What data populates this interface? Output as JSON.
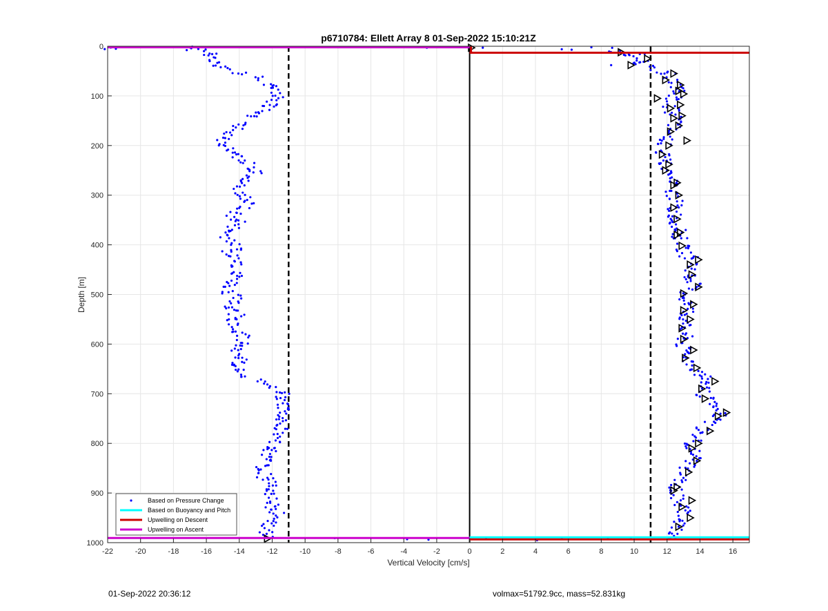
{
  "chart_data": {
    "type": "scatter",
    "title": "p6710784: Ellett Array 8 01-Sep-2022 15:10:21Z",
    "xlabel": "Vertical Velocity [cm/s]",
    "ylabel": "Depth [m]",
    "xlim": [
      -22,
      17
    ],
    "ylim": [
      0,
      1000
    ],
    "y_reversed": true,
    "grid": true,
    "x_ticks": [
      -22,
      -20,
      -18,
      -16,
      -14,
      -12,
      -10,
      -8,
      -6,
      -4,
      -2,
      0,
      2,
      4,
      6,
      8,
      10,
      12,
      14,
      16
    ],
    "y_ticks": [
      0,
      100,
      200,
      300,
      400,
      500,
      600,
      700,
      800,
      900,
      1000
    ],
    "legend_position": "bottom-left",
    "legend": [
      {
        "name": "Based on Pressure Change",
        "color": "#0000ff",
        "style": "dot"
      },
      {
        "name": "Based on Buoyancy and Pitch",
        "color": "#00ffff",
        "style": "line"
      },
      {
        "name": "Upwelling on Descent",
        "color": "#cc0000",
        "style": "line"
      },
      {
        "name": "Upwelling on Ascent",
        "color": "#cc00cc",
        "style": "line"
      }
    ],
    "reference_lines": [
      {
        "x": -11,
        "style": "dashed",
        "color": "#000000"
      },
      {
        "x": 11,
        "style": "dashed",
        "color": "#000000"
      },
      {
        "x": 0,
        "style": "solid",
        "color": "#000000"
      }
    ],
    "ascent_profile": {
      "depth": [
        2,
        5,
        10,
        18,
        25,
        35,
        45,
        55,
        65,
        75,
        85,
        95,
        105,
        115,
        125,
        135,
        145,
        155,
        165,
        175,
        185,
        195,
        205,
        215,
        225,
        235,
        245,
        255,
        265,
        275,
        285,
        295,
        305,
        315,
        325,
        335,
        345,
        355,
        365,
        375,
        385,
        395,
        405,
        415,
        425,
        435,
        445,
        455,
        465,
        475,
        485,
        495,
        505,
        515,
        525,
        535,
        545,
        555,
        565,
        575,
        585,
        595,
        605,
        615,
        625,
        635,
        645,
        655,
        665,
        675,
        685,
        695,
        705,
        715,
        725,
        735,
        745,
        755,
        765,
        775,
        785,
        795,
        805,
        815,
        825,
        835,
        845,
        855,
        865,
        875,
        885,
        895,
        905,
        915,
        925,
        935,
        945,
        955,
        965,
        975,
        985
      ],
      "velocity": [
        -21.8,
        -17,
        -16.2,
        -15.8,
        -15.5,
        -15.2,
        -14.8,
        -14.0,
        -12.8,
        -12.3,
        -11.8,
        -11.6,
        -11.7,
        -11.9,
        -12.2,
        -12.6,
        -13.2,
        -13.6,
        -14.0,
        -14.5,
        -15.0,
        -15.2,
        -14.8,
        -14.4,
        -14.0,
        -13.5,
        -13.2,
        -13.0,
        -13.4,
        -13.8,
        -14.0,
        -14.0,
        -13.6,
        -13.5,
        -13.8,
        -14.2,
        -14.4,
        -14.0,
        -14.3,
        -14.6,
        -14.7,
        -14.4,
        -14.2,
        -14.6,
        -14.2,
        -13.9,
        -14.1,
        -14.3,
        -14.1,
        -14.4,
        -14.5,
        -14.6,
        -14.3,
        -14.4,
        -14.5,
        -14.2,
        -14.0,
        -14.3,
        -14.2,
        -14.0,
        -13.8,
        -13.9,
        -14.1,
        -14.3,
        -14.1,
        -14.0,
        -14.2,
        -13.9,
        -13.5,
        -12.8,
        -11.9,
        -11.6,
        -11.4,
        -11.5,
        -11.3,
        -11.2,
        -11.3,
        -11.4,
        -11.6,
        -11.5,
        -11.6,
        -11.8,
        -12.0,
        -12.1,
        -12.3,
        -12.4,
        -12.6,
        -12.8,
        -12.5,
        -12.2,
        -12.0,
        -12.1,
        -12.0,
        -12.1,
        -12.0,
        -11.8,
        -11.7,
        -11.9,
        -12.2,
        -12.4,
        -12.3
      ]
    },
    "descent_profile": {
      "depth": [
        8,
        14,
        20,
        28,
        36,
        44,
        52,
        60,
        70,
        80,
        90,
        100,
        110,
        120,
        130,
        140,
        150,
        160,
        170,
        180,
        190,
        200,
        210,
        220,
        230,
        240,
        250,
        260,
        270,
        280,
        290,
        300,
        310,
        320,
        330,
        340,
        350,
        360,
        370,
        380,
        390,
        400,
        410,
        420,
        430,
        440,
        450,
        460,
        470,
        480,
        490,
        500,
        510,
        520,
        530,
        540,
        550,
        560,
        570,
        580,
        590,
        600,
        610,
        620,
        630,
        640,
        650,
        660,
        670,
        680,
        690,
        700,
        710,
        720,
        730,
        740,
        750,
        760,
        770,
        780,
        790,
        800,
        810,
        820,
        830,
        840,
        850,
        860,
        870,
        880,
        890,
        900,
        910,
        920,
        930,
        940,
        950,
        960,
        970,
        980,
        988
      ],
      "velocity": [
        8.8,
        9.4,
        10.2,
        10.6,
        10.4,
        10.8,
        11.6,
        12.2,
        12.4,
        12.6,
        12.7,
        12.5,
        12.3,
        12.2,
        12.3,
        12.5,
        12.6,
        12.4,
        12.2,
        12.1,
        12.0,
        11.8,
        11.6,
        11.7,
        11.8,
        11.9,
        12.0,
        12.1,
        12.2,
        12.3,
        12.3,
        12.4,
        12.5,
        12.5,
        12.4,
        12.5,
        12.5,
        12.6,
        12.7,
        12.7,
        12.8,
        12.9,
        13.0,
        13.2,
        13.5,
        13.6,
        13.5,
        13.4,
        13.5,
        13.6,
        13.4,
        13.2,
        13.1,
        13.2,
        13.3,
        13.2,
        13.1,
        13.0,
        13.0,
        13.1,
        13.0,
        12.9,
        13.0,
        13.2,
        13.3,
        13.5,
        13.8,
        14.0,
        14.2,
        14.4,
        14.3,
        14.2,
        14.4,
        14.6,
        14.9,
        15.2,
        15.0,
        14.6,
        14.2,
        13.9,
        13.7,
        13.5,
        13.4,
        13.6,
        13.7,
        13.5,
        13.2,
        13.0,
        12.8,
        12.6,
        12.5,
        12.5,
        12.6,
        12.8,
        13.0,
        13.1,
        13.0,
        12.8,
        12.6,
        12.4,
        12.1
      ]
    },
    "triangle_markers": [
      {
        "depth": 3,
        "velocity": 0.1
      },
      {
        "depth": 12,
        "velocity": 9.2
      },
      {
        "depth": 25,
        "velocity": 10.8
      },
      {
        "depth": 38,
        "velocity": 9.8
      },
      {
        "depth": 55,
        "velocity": 12.4
      },
      {
        "depth": 68,
        "velocity": 11.9
      },
      {
        "depth": 78,
        "velocity": 12.8
      },
      {
        "depth": 90,
        "velocity": 12.7
      },
      {
        "depth": 96,
        "velocity": 13.0
      },
      {
        "depth": 105,
        "velocity": 11.4
      },
      {
        "depth": 118,
        "velocity": 12.8
      },
      {
        "depth": 125,
        "velocity": 12.2
      },
      {
        "depth": 140,
        "velocity": 12.9
      },
      {
        "depth": 145,
        "velocity": 12.4
      },
      {
        "depth": 160,
        "velocity": 12.7
      },
      {
        "depth": 172,
        "velocity": 12.2
      },
      {
        "depth": 190,
        "velocity": 13.2
      },
      {
        "depth": 200,
        "velocity": 12.1
      },
      {
        "depth": 218,
        "velocity": 11.7
      },
      {
        "depth": 238,
        "velocity": 12.1
      },
      {
        "depth": 250,
        "velocity": 11.9
      },
      {
        "depth": 275,
        "velocity": 12.6
      },
      {
        "depth": 280,
        "velocity": 12.4
      },
      {
        "depth": 300,
        "velocity": 12.7
      },
      {
        "depth": 325,
        "velocity": 12.4
      },
      {
        "depth": 348,
        "velocity": 12.6
      },
      {
        "depth": 375,
        "velocity": 12.8
      },
      {
        "depth": 380,
        "velocity": 12.6
      },
      {
        "depth": 402,
        "velocity": 12.9
      },
      {
        "depth": 430,
        "velocity": 13.9
      },
      {
        "depth": 440,
        "velocity": 13.4
      },
      {
        "depth": 460,
        "velocity": 13.5
      },
      {
        "depth": 485,
        "velocity": 13.9
      },
      {
        "depth": 498,
        "velocity": 13.0
      },
      {
        "depth": 520,
        "velocity": 13.6
      },
      {
        "depth": 532,
        "velocity": 13.0
      },
      {
        "depth": 550,
        "velocity": 13.4
      },
      {
        "depth": 568,
        "velocity": 12.9
      },
      {
        "depth": 590,
        "velocity": 13.0
      },
      {
        "depth": 612,
        "velocity": 13.6
      },
      {
        "depth": 628,
        "velocity": 13.1
      },
      {
        "depth": 648,
        "velocity": 13.8
      },
      {
        "depth": 675,
        "velocity": 14.9
      },
      {
        "depth": 690,
        "velocity": 14.1
      },
      {
        "depth": 710,
        "velocity": 14.3
      },
      {
        "depth": 738,
        "velocity": 15.6
      },
      {
        "depth": 745,
        "velocity": 15.1
      },
      {
        "depth": 775,
        "velocity": 14.6
      },
      {
        "depth": 800,
        "velocity": 13.9
      },
      {
        "depth": 810,
        "velocity": 13.5
      },
      {
        "depth": 835,
        "velocity": 13.8
      },
      {
        "depth": 858,
        "velocity": 13.3
      },
      {
        "depth": 888,
        "velocity": 12.6
      },
      {
        "depth": 895,
        "velocity": 12.4
      },
      {
        "depth": 915,
        "velocity": 13.5
      },
      {
        "depth": 928,
        "velocity": 12.9
      },
      {
        "depth": 950,
        "velocity": 13.4
      },
      {
        "depth": 968,
        "velocity": 12.7
      },
      {
        "depth": 992,
        "velocity": -12.3
      }
    ],
    "descent_upwelling_line": {
      "depth": 13,
      "x_from": 0,
      "x_to": 17
    },
    "ascent_upwelling_line": {
      "depth": 2,
      "x_from": -22,
      "x_to": 0
    },
    "bottom_lines_depth": 992
  },
  "footer": {
    "left": "01-Sep-2022 20:36:12",
    "right": "volmax=51792.9cc, mass=52.831kg"
  }
}
